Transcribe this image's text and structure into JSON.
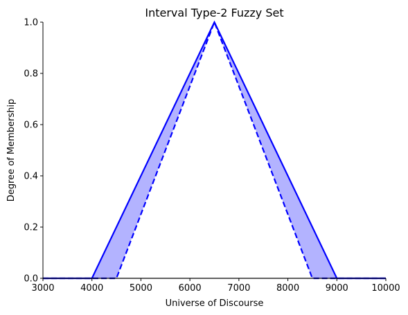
{
  "chart_data": {
    "type": "area",
    "title": "Interval Type-2 Fuzzy Set",
    "xlabel": "Universe of Discourse",
    "ylabel": "Degree of Membership",
    "xlim": [
      3000,
      10000
    ],
    "ylim": [
      0,
      1
    ],
    "x_ticks": [
      3000,
      4000,
      5000,
      6000,
      7000,
      8000,
      9000,
      10000
    ],
    "y_ticks": [
      0.0,
      0.2,
      0.4,
      0.6,
      0.8,
      1.0
    ],
    "x_tick_labels": [
      "3000",
      "4000",
      "5000",
      "6000",
      "7000",
      "8000",
      "9000",
      "10000"
    ],
    "y_tick_labels": [
      "0.0",
      "0.2",
      "0.4",
      "0.6",
      "0.8",
      "1.0"
    ],
    "grid": false,
    "series": [
      {
        "role": "upper membership function",
        "line_style": "solid",
        "color": "#0000ff",
        "points": [
          [
            3000,
            0
          ],
          [
            4000,
            0
          ],
          [
            6500,
            1
          ],
          [
            9000,
            0
          ],
          [
            10000,
            0
          ]
        ]
      },
      {
        "role": "lower membership function",
        "line_style": "dashed",
        "color": "#0000ff",
        "points": [
          [
            3000,
            0
          ],
          [
            4500,
            0
          ],
          [
            6500,
            1
          ],
          [
            8500,
            0
          ],
          [
            10000,
            0
          ]
        ]
      }
    ],
    "footprint_of_uncertainty_fill": "#b3b3ff"
  }
}
